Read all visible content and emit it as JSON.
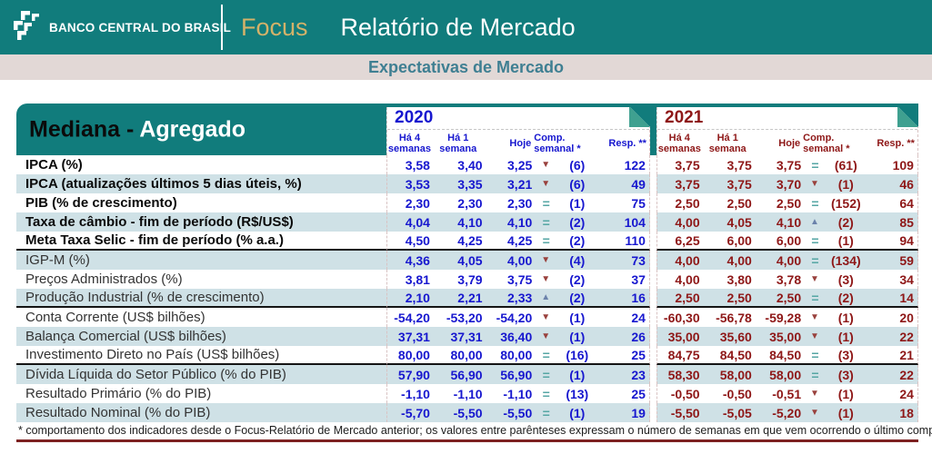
{
  "header": {
    "bank_name": "BANCO CENTRAL DO BRASIL",
    "brand": "Focus",
    "title": "Relatório de Mercado"
  },
  "subheader": {
    "title": "Expectativas de Mercado"
  },
  "colors": {
    "teal": "#117c7c",
    "teal_fold": "#3fa090",
    "gold": "#d4b269",
    "band_bg": "#e2d8d6",
    "band_text": "#3f7f92",
    "row_alt": "#cfe1e6",
    "dash": "#d9c4c4",
    "sym_down": "#99413d",
    "sym_up": "#6b82ab",
    "sym_equal": "#55a6a4",
    "footnote_line": "#7d2121"
  },
  "table": {
    "title_part1": "Mediana -",
    "title_part2": "Agregado",
    "symbols": {
      "down": "▼",
      "up": "▲",
      "equal": "="
    },
    "columns": {
      "ha4_l1": "Há 4",
      "ha4_l2": "semanas",
      "ha1_l1": "Há 1",
      "ha1_l2": "semana",
      "hoje": "Hoje",
      "comp_l1": "Comp.",
      "comp_l2": "semanal *",
      "resp": "Resp. **"
    },
    "year_blocks": [
      {
        "year": "2020",
        "color": "#1717cf"
      },
      {
        "year": "2021",
        "color": "#8e1717"
      }
    ],
    "rows": [
      {
        "label": "IPCA (%)",
        "bold": true,
        "y2020": {
          "w4": "3,58",
          "w1": "3,40",
          "today": "3,25",
          "dir": "down",
          "weeks": "(6)",
          "resp": "122"
        },
        "y2021": {
          "w4": "3,75",
          "w1": "3,75",
          "today": "3,75",
          "dir": "equal",
          "weeks": "(61)",
          "resp": "109"
        }
      },
      {
        "label": "IPCA (atualizações últimos 5 dias úteis, %)",
        "bold": true,
        "y2020": {
          "w4": "3,53",
          "w1": "3,35",
          "today": "3,21",
          "dir": "down",
          "weeks": "(6)",
          "resp": "49"
        },
        "y2021": {
          "w4": "3,75",
          "w1": "3,75",
          "today": "3,70",
          "dir": "down",
          "weeks": "(1)",
          "resp": "46"
        }
      },
      {
        "label": "PIB (% de crescimento)",
        "bold": true,
        "y2020": {
          "w4": "2,30",
          "w1": "2,30",
          "today": "2,30",
          "dir": "equal",
          "weeks": "(1)",
          "resp": "75"
        },
        "y2021": {
          "w4": "2,50",
          "w1": "2,50",
          "today": "2,50",
          "dir": "equal",
          "weeks": "(152)",
          "resp": "64"
        }
      },
      {
        "label": "Taxa de câmbio - fim de período (R$/US$)",
        "bold": true,
        "y2020": {
          "w4": "4,04",
          "w1": "4,10",
          "today": "4,10",
          "dir": "equal",
          "weeks": "(2)",
          "resp": "104"
        },
        "y2021": {
          "w4": "4,00",
          "w1": "4,05",
          "today": "4,10",
          "dir": "up",
          "weeks": "(2)",
          "resp": "85"
        }
      },
      {
        "label": "Meta Taxa Selic - fim de período (% a.a.)",
        "bold": true,
        "group_end": true,
        "y2020": {
          "w4": "4,50",
          "w1": "4,25",
          "today": "4,25",
          "dir": "equal",
          "weeks": "(2)",
          "resp": "110"
        },
        "y2021": {
          "w4": "6,25",
          "w1": "6,00",
          "today": "6,00",
          "dir": "equal",
          "weeks": "(1)",
          "resp": "94"
        }
      },
      {
        "label": "IGP-M (%)",
        "y2020": {
          "w4": "4,36",
          "w1": "4,05",
          "today": "4,00",
          "dir": "down",
          "weeks": "(4)",
          "resp": "73"
        },
        "y2021": {
          "w4": "4,00",
          "w1": "4,00",
          "today": "4,00",
          "dir": "equal",
          "weeks": "(134)",
          "resp": "59"
        }
      },
      {
        "label": "Preços Administrados (%)",
        "y2020": {
          "w4": "3,81",
          "w1": "3,79",
          "today": "3,75",
          "dir": "down",
          "weeks": "(2)",
          "resp": "37"
        },
        "y2021": {
          "w4": "4,00",
          "w1": "3,80",
          "today": "3,78",
          "dir": "down",
          "weeks": "(3)",
          "resp": "34"
        }
      },
      {
        "label": "Produção Industrial (% de crescimento)",
        "group_end": true,
        "y2020": {
          "w4": "2,10",
          "w1": "2,21",
          "today": "2,33",
          "dir": "up",
          "weeks": "(2)",
          "resp": "16"
        },
        "y2021": {
          "w4": "2,50",
          "w1": "2,50",
          "today": "2,50",
          "dir": "equal",
          "weeks": "(2)",
          "resp": "14"
        }
      },
      {
        "label": "Conta Corrente (US$ bilhões)",
        "y2020": {
          "w4": "-54,20",
          "w1": "-53,20",
          "today": "-54,20",
          "dir": "down",
          "weeks": "(1)",
          "resp": "24"
        },
        "y2021": {
          "w4": "-60,30",
          "w1": "-56,78",
          "today": "-59,28",
          "dir": "down",
          "weeks": "(1)",
          "resp": "20"
        }
      },
      {
        "label": "Balança Comercial (US$ bilhões)",
        "y2020": {
          "w4": "37,31",
          "w1": "37,31",
          "today": "36,40",
          "dir": "down",
          "weeks": "(1)",
          "resp": "26"
        },
        "y2021": {
          "w4": "35,00",
          "w1": "35,60",
          "today": "35,00",
          "dir": "down",
          "weeks": "(1)",
          "resp": "22"
        }
      },
      {
        "label": "Investimento Direto no País (US$ bilhões)",
        "group_end": true,
        "y2020": {
          "w4": "80,00",
          "w1": "80,00",
          "today": "80,00",
          "dir": "equal",
          "weeks": "(16)",
          "resp": "25"
        },
        "y2021": {
          "w4": "84,75",
          "w1": "84,50",
          "today": "84,50",
          "dir": "equal",
          "weeks": "(3)",
          "resp": "21"
        }
      },
      {
        "label": "Dívida Líquida do Setor Público (% do PIB)",
        "y2020": {
          "w4": "57,90",
          "w1": "56,90",
          "today": "56,90",
          "dir": "equal",
          "weeks": "(1)",
          "resp": "23"
        },
        "y2021": {
          "w4": "58,30",
          "w1": "58,00",
          "today": "58,00",
          "dir": "equal",
          "weeks": "(3)",
          "resp": "22"
        }
      },
      {
        "label": "Resultado Primário (% do PIB)",
        "y2020": {
          "w4": "-1,10",
          "w1": "-1,10",
          "today": "-1,10",
          "dir": "equal",
          "weeks": "(13)",
          "resp": "25"
        },
        "y2021": {
          "w4": "-0,50",
          "w1": "-0,50",
          "today": "-0,51",
          "dir": "down",
          "weeks": "(1)",
          "resp": "24"
        }
      },
      {
        "label": "Resultado Nominal (% do PIB)",
        "y2020": {
          "w4": "-5,70",
          "w1": "-5,50",
          "today": "-5,50",
          "dir": "equal",
          "weeks": "(1)",
          "resp": "19"
        },
        "y2021": {
          "w4": "-5,50",
          "w1": "-5,05",
          "today": "-5,20",
          "dir": "down",
          "weeks": "(1)",
          "resp": "18"
        }
      }
    ]
  },
  "footnote": "* comportamento dos indicadores desde o Focus-Relatório de Mercado anterior; os valores entre parênteses expressam o número de semanas em que vem ocorrendo o último comportamento"
}
